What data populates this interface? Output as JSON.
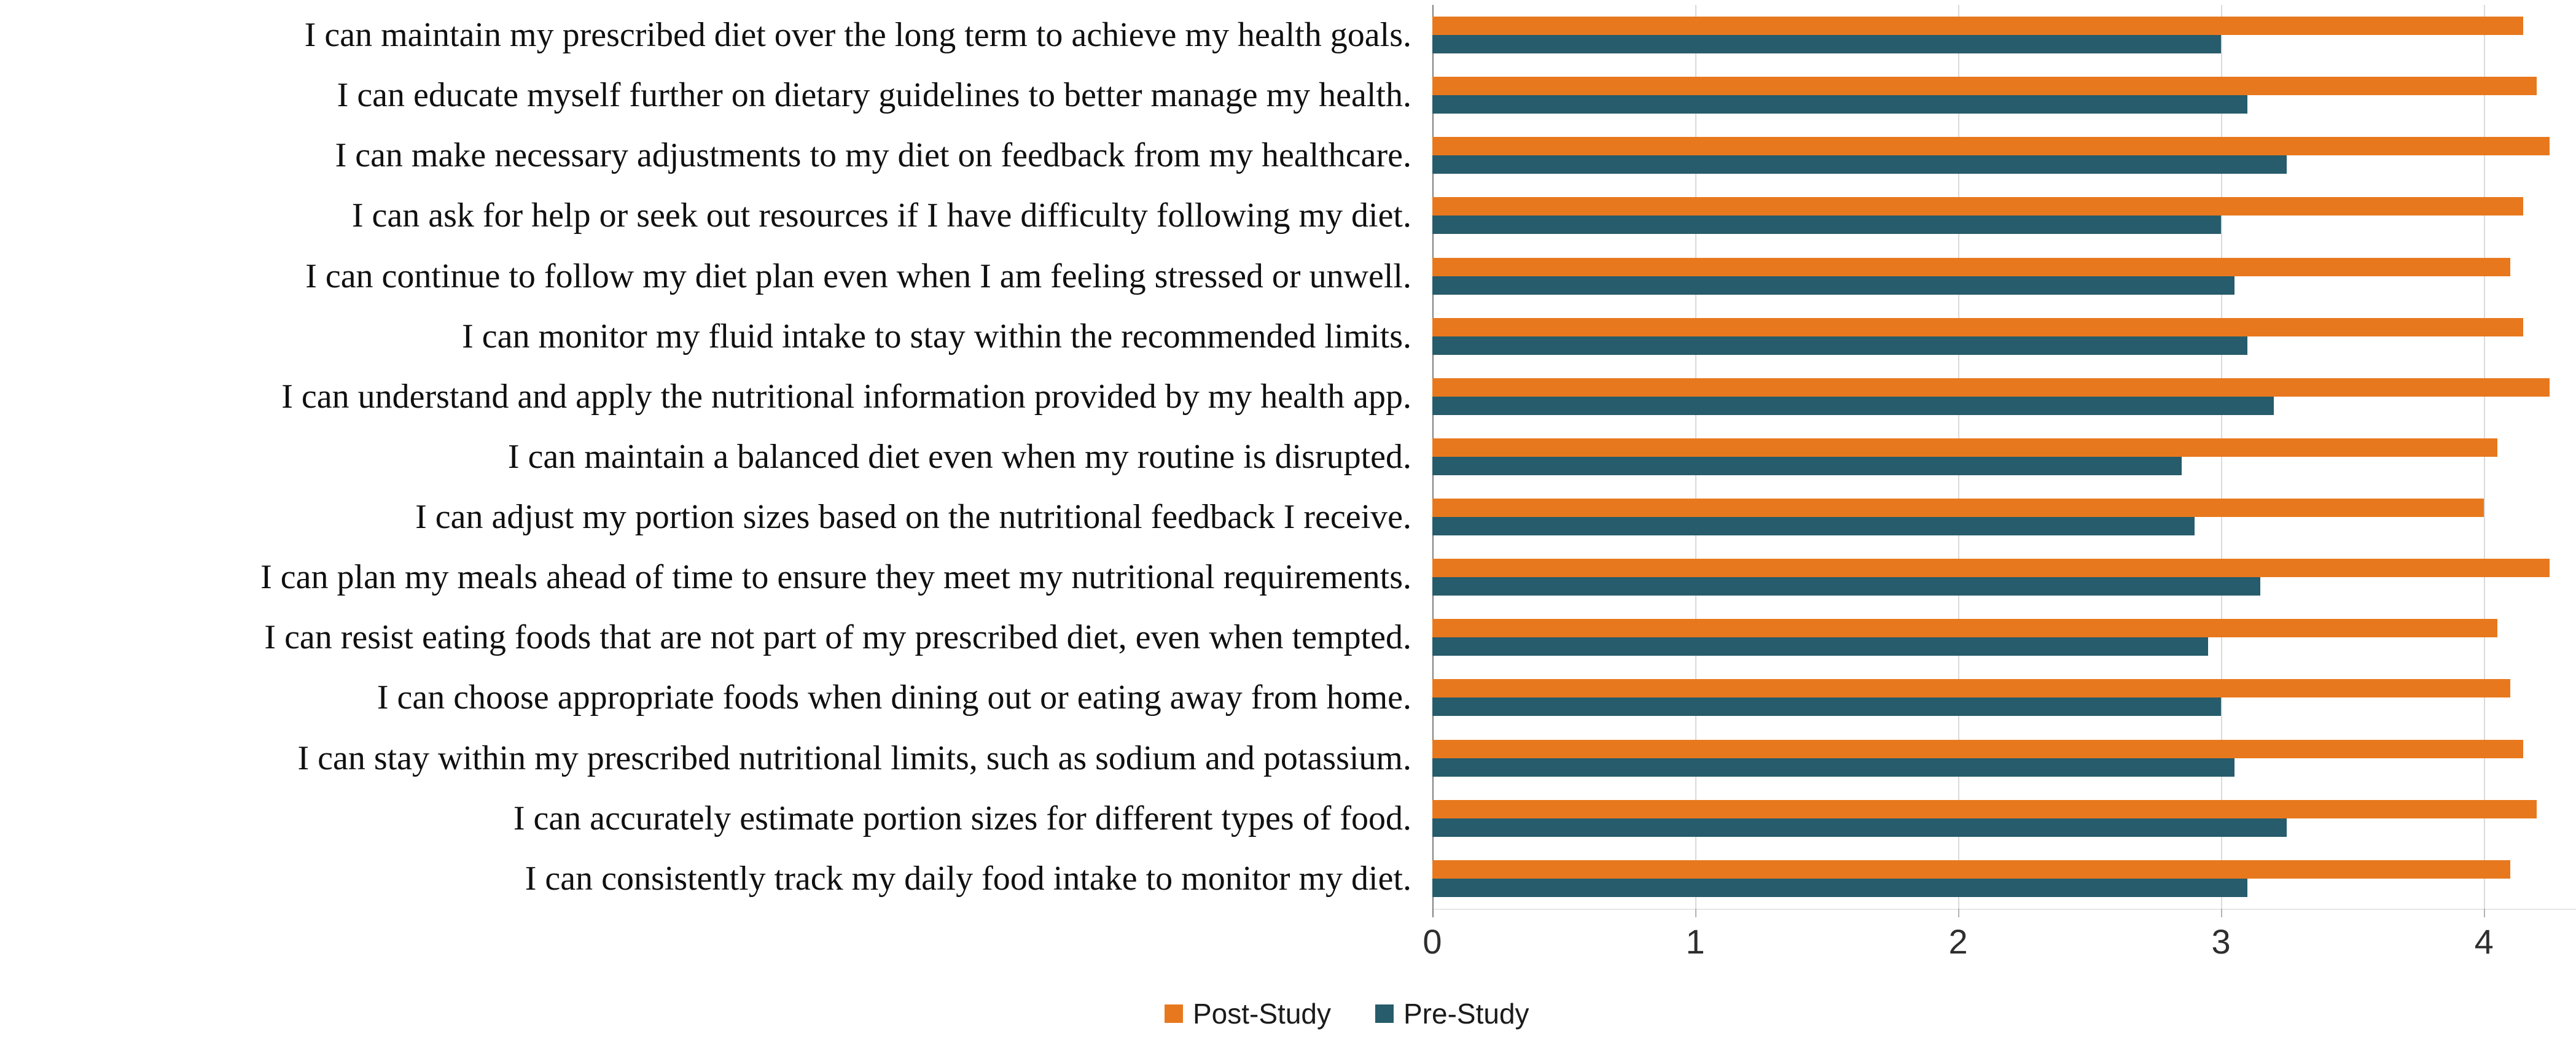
{
  "figure": {
    "background": "#ffffff",
    "gridline_color": "#dadada",
    "zero_axis_color": "#7f7f7f",
    "tick_label_color": "#2e2e2e"
  },
  "legend": {
    "position": "bottom-center",
    "post_label": "Post-Study",
    "pre_label": "Pre-Study"
  },
  "chart_data": {
    "type": "bar",
    "orientation": "horizontal",
    "title": "",
    "xlabel": "",
    "ylabel": "",
    "xlim": [
      0,
      4.35
    ],
    "x_ticks": [
      0,
      1,
      2,
      3,
      4
    ],
    "grid": "vertical-light",
    "legend_position": "bottom-center",
    "categories": [
      "I can maintain my prescribed diet over the long term to achieve my health goals.",
      "I can educate myself further on dietary guidelines to better manage my health.",
      "I can make necessary adjustments to my diet on feedback from my healthcare.",
      "I can ask for help or seek out resources if I have difficulty following my diet.",
      "I can continue to follow my diet plan even when I am feeling stressed or unwell.",
      "I can monitor my fluid intake to stay within the recommended limits.",
      "I can understand and apply the nutritional information provided by my health app.",
      "I can maintain a balanced diet even when my routine is disrupted.",
      "I can adjust my portion sizes based on the nutritional feedback I receive.",
      "I can plan my meals ahead of time to ensure they meet my nutritional requirements.",
      "I can resist eating foods that are not part of my prescribed diet, even when tempted.",
      "I can choose appropriate foods when dining out or eating away from home.",
      "I can stay within my prescribed nutritional limits, such as sodium and potassium.",
      "I can accurately estimate portion sizes for different types of food.",
      "I can consistently track my daily food intake to monitor my diet."
    ],
    "series": [
      {
        "name": "Post-Study",
        "color": "#E8781E",
        "values": [
          4.15,
          4.2,
          4.25,
          4.15,
          4.1,
          4.15,
          4.25,
          4.05,
          4.0,
          4.25,
          4.05,
          4.1,
          4.15,
          4.2,
          4.1
        ]
      },
      {
        "name": "Pre-Study",
        "color": "#265C6B",
        "values": [
          3.0,
          3.1,
          3.25,
          3.0,
          3.05,
          3.1,
          3.2,
          2.85,
          2.9,
          3.15,
          2.95,
          3.0,
          3.05,
          3.25,
          3.1
        ]
      }
    ]
  }
}
